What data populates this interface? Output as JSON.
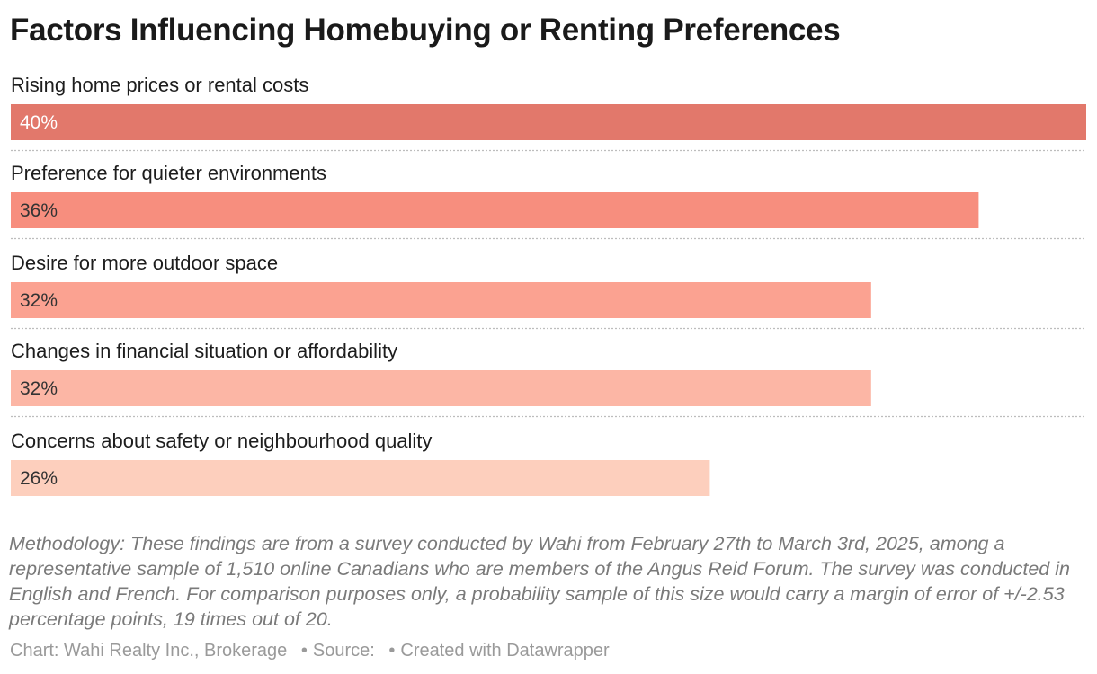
{
  "chart_data": {
    "type": "bar",
    "orientation": "horizontal",
    "title": "Factors Influencing Homebuying or Renting Preferences",
    "categories": [
      "Rising home prices or rental costs",
      "Preference for quieter environments",
      "Desire for more outdoor space",
      "Changes in financial situation or affordability",
      "Concerns about safety or neighbourhood quality"
    ],
    "values": [
      40,
      36,
      32,
      32,
      26
    ],
    "value_labels": [
      "40%",
      "36%",
      "32%",
      "32%",
      "26%"
    ],
    "unit": "%",
    "xlim": [
      0,
      40
    ],
    "colors": [
      "#e2786b",
      "#f78e7e",
      "#fba291",
      "#fcb6a5",
      "#fdcfbd"
    ],
    "label_colors": [
      "#ffffff",
      "#333333",
      "#333333",
      "#333333",
      "#333333"
    ],
    "grid": false,
    "separators": "dotted"
  },
  "notes": {
    "methodology": "Methodology: These findings are from a survey conducted by Wahi from February 27th to March 3rd, 2025, among a representative sample of 1,510 online Canadians who are members of the Angus Reid Forum. The survey was conducted in English and French. For comparison purposes only, a probability sample of this size would carry a margin of error of +/-2.53 percentage points, 19 times out of 20."
  },
  "footer": {
    "chart_credit": "Chart: Wahi Realty Inc., Brokerage",
    "separator": "•",
    "source": "Source:",
    "created_with": "Created with Datawrapper"
  }
}
